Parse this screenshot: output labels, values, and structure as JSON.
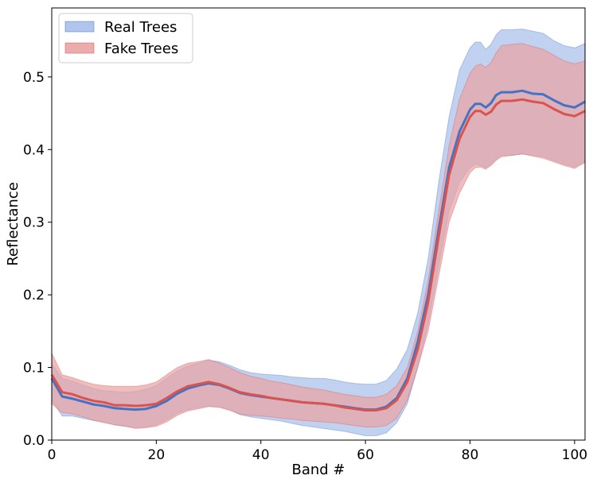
{
  "chart_data": {
    "type": "area",
    "title": "",
    "xlabel": "Band #",
    "ylabel": "Reflectance",
    "xlim": [
      0,
      102
    ],
    "ylim": [
      0,
      0.595
    ],
    "xticks": [
      0,
      20,
      40,
      60,
      80,
      100
    ],
    "xtick_labels": [
      "0",
      "20",
      "40",
      "60",
      "80",
      "100"
    ],
    "yticks": [
      0.0,
      0.1,
      0.2,
      0.3,
      0.4,
      0.5
    ],
    "ytick_labels": [
      "0.0",
      "0.1",
      "0.2",
      "0.3",
      "0.4",
      "0.5"
    ],
    "grid": false,
    "legend_position": "top-left",
    "x": [
      0,
      2,
      4,
      6,
      8,
      10,
      12,
      14,
      16,
      18,
      20,
      22,
      24,
      26,
      28,
      30,
      32,
      34,
      36,
      38,
      40,
      42,
      44,
      46,
      48,
      50,
      52,
      54,
      56,
      58,
      60,
      62,
      64,
      66,
      68,
      70,
      72,
      74,
      76,
      78,
      80,
      81,
      82,
      83,
      84,
      85,
      86,
      88,
      90,
      92,
      94,
      96,
      98,
      100,
      102
    ],
    "series": [
      {
        "name": "Real Trees",
        "color": "#4472c4",
        "fill_color": "#a9bfea",
        "mean": [
          0.085,
          0.06,
          0.057,
          0.053,
          0.049,
          0.047,
          0.044,
          0.043,
          0.042,
          0.043,
          0.047,
          0.054,
          0.064,
          0.071,
          0.075,
          0.078,
          0.076,
          0.071,
          0.065,
          0.062,
          0.06,
          0.058,
          0.056,
          0.054,
          0.052,
          0.051,
          0.05,
          0.048,
          0.046,
          0.044,
          0.042,
          0.042,
          0.046,
          0.058,
          0.085,
          0.135,
          0.2,
          0.29,
          0.375,
          0.425,
          0.455,
          0.463,
          0.463,
          0.458,
          0.464,
          0.475,
          0.479,
          0.479,
          0.481,
          0.477,
          0.476,
          0.468,
          0.461,
          0.458,
          0.466
        ],
        "upper": [
          0.105,
          0.085,
          0.081,
          0.076,
          0.071,
          0.068,
          0.067,
          0.066,
          0.067,
          0.07,
          0.075,
          0.085,
          0.095,
          0.102,
          0.106,
          0.11,
          0.108,
          0.103,
          0.097,
          0.093,
          0.091,
          0.09,
          0.089,
          0.087,
          0.086,
          0.085,
          0.085,
          0.083,
          0.08,
          0.078,
          0.077,
          0.077,
          0.082,
          0.098,
          0.125,
          0.175,
          0.25,
          0.355,
          0.445,
          0.51,
          0.54,
          0.548,
          0.548,
          0.538,
          0.545,
          0.558,
          0.565,
          0.565,
          0.566,
          0.563,
          0.56,
          0.55,
          0.543,
          0.54,
          0.546
        ],
        "lower": [
          0.055,
          0.033,
          0.033,
          0.03,
          0.027,
          0.025,
          0.021,
          0.019,
          0.017,
          0.018,
          0.021,
          0.028,
          0.037,
          0.042,
          0.045,
          0.047,
          0.046,
          0.042,
          0.035,
          0.032,
          0.03,
          0.028,
          0.026,
          0.023,
          0.02,
          0.018,
          0.016,
          0.014,
          0.012,
          0.009,
          0.006,
          0.006,
          0.01,
          0.024,
          0.05,
          0.1,
          0.16,
          0.24,
          0.315,
          0.355,
          0.375,
          0.38,
          0.378,
          0.375,
          0.38,
          0.387,
          0.392,
          0.392,
          0.394,
          0.392,
          0.39,
          0.385,
          0.38,
          0.376,
          0.384
        ]
      },
      {
        "name": "Fake Trees",
        "color": "#d9534f",
        "fill_color": "#e9a3a3",
        "mean": [
          0.09,
          0.066,
          0.063,
          0.058,
          0.054,
          0.052,
          0.048,
          0.048,
          0.047,
          0.048,
          0.05,
          0.058,
          0.067,
          0.074,
          0.077,
          0.08,
          0.077,
          0.072,
          0.066,
          0.063,
          0.061,
          0.058,
          0.056,
          0.054,
          0.052,
          0.051,
          0.05,
          0.048,
          0.045,
          0.043,
          0.041,
          0.041,
          0.044,
          0.055,
          0.08,
          0.125,
          0.19,
          0.28,
          0.365,
          0.415,
          0.445,
          0.453,
          0.453,
          0.448,
          0.452,
          0.462,
          0.467,
          0.467,
          0.469,
          0.466,
          0.464,
          0.456,
          0.449,
          0.446,
          0.453
        ],
        "upper": [
          0.12,
          0.09,
          0.086,
          0.081,
          0.077,
          0.075,
          0.074,
          0.074,
          0.074,
          0.076,
          0.08,
          0.09,
          0.1,
          0.106,
          0.108,
          0.111,
          0.106,
          0.1,
          0.093,
          0.088,
          0.085,
          0.081,
          0.079,
          0.076,
          0.073,
          0.071,
          0.069,
          0.066,
          0.063,
          0.061,
          0.059,
          0.059,
          0.063,
          0.075,
          0.1,
          0.15,
          0.22,
          0.315,
          0.405,
          0.47,
          0.505,
          0.515,
          0.518,
          0.513,
          0.52,
          0.533,
          0.543,
          0.545,
          0.546,
          0.542,
          0.538,
          0.53,
          0.522,
          0.518,
          0.522
        ],
        "lower": [
          0.05,
          0.038,
          0.036,
          0.032,
          0.027,
          0.024,
          0.021,
          0.019,
          0.016,
          0.017,
          0.019,
          0.025,
          0.034,
          0.04,
          0.043,
          0.046,
          0.045,
          0.041,
          0.036,
          0.034,
          0.033,
          0.032,
          0.03,
          0.029,
          0.027,
          0.026,
          0.025,
          0.024,
          0.022,
          0.02,
          0.018,
          0.018,
          0.02,
          0.03,
          0.055,
          0.1,
          0.15,
          0.225,
          0.3,
          0.34,
          0.368,
          0.375,
          0.376,
          0.373,
          0.378,
          0.385,
          0.39,
          0.392,
          0.394,
          0.391,
          0.388,
          0.383,
          0.378,
          0.374,
          0.382
        ]
      }
    ]
  }
}
